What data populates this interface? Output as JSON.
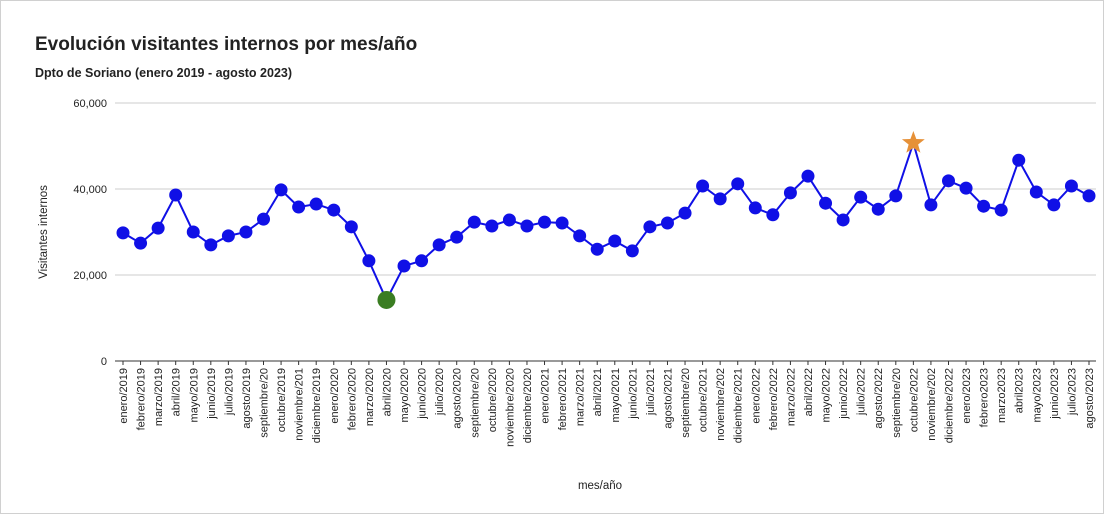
{
  "chart_data": {
    "type": "line",
    "title": "Evolución visitantes internos por mes/año",
    "subtitle": "Dpto de Soriano (enero 2019 - agosto 2023)",
    "y_label": "Visitantes internos",
    "x_label": "mes/año",
    "categories": [
      "enero/2019",
      "febrero/2019",
      "marzo/2019",
      "abril/2019",
      "mayo/2019",
      "junio/2019",
      "julio/2019",
      "agosto/2019",
      "septiembre/20",
      "octubre/2019",
      "noviembre/201",
      "diciembre/2019",
      "enero/2020",
      "febrero/2020",
      "marzo/2020",
      "abril/2020",
      "mayo/2020",
      "junio/2020",
      "julio/2020",
      "agosto/2020",
      "septiembre/20",
      "octubre/2020",
      "noviembre/2020",
      "diciembre/2020",
      "enero/2021",
      "febrero/2021",
      "marzo/2021",
      "abril/2021",
      "mayo/2021",
      "junio/2021",
      "julio/2021",
      "agosto/2021",
      "septiembre/20",
      "octubre/2021",
      "noviembre/202",
      "diciembre/2021",
      "enero/2022",
      "febrero/2022",
      "marzo/2022",
      "abril/2022",
      "mayo/2022",
      "junio/2022",
      "julio/2022",
      "agosto/2022",
      "septiembre/20",
      "octubre/2022",
      "noviembre/202",
      "diciembre/2022",
      "enero/2023",
      "febrero2023",
      "marzo2023",
      "abril2023",
      "mayo/2023",
      "junio/2023",
      "julio/2023",
      "agosto/2023"
    ],
    "values": [
      29800,
      27400,
      30900,
      38600,
      30000,
      27000,
      29100,
      30000,
      33000,
      39800,
      35800,
      36500,
      35100,
      31200,
      23300,
      14200,
      22100,
      23300,
      27000,
      28800,
      32300,
      31400,
      32800,
      31400,
      32300,
      32100,
      29100,
      26000,
      27900,
      25600,
      31200,
      32100,
      34400,
      40700,
      37700,
      41200,
      35600,
      34000,
      39100,
      43000,
      36700,
      32800,
      38100,
      35300,
      38400,
      50700,
      36300,
      41900,
      40200,
      36000,
      35100,
      46700,
      39300,
      36300,
      40700,
      38400
    ],
    "color": "#1010e6",
    "min_marker_color": "#3a7d22",
    "max_marker_color": "#e69138",
    "ylim": [
      0,
      60000
    ],
    "yticks": [
      0,
      {
        "value": 20000,
        "label": "20,000"
      },
      {
        "value": 40000,
        "label": "40,000"
      },
      {
        "value": 60000,
        "label": "60,000"
      }
    ],
    "grid": true
  }
}
